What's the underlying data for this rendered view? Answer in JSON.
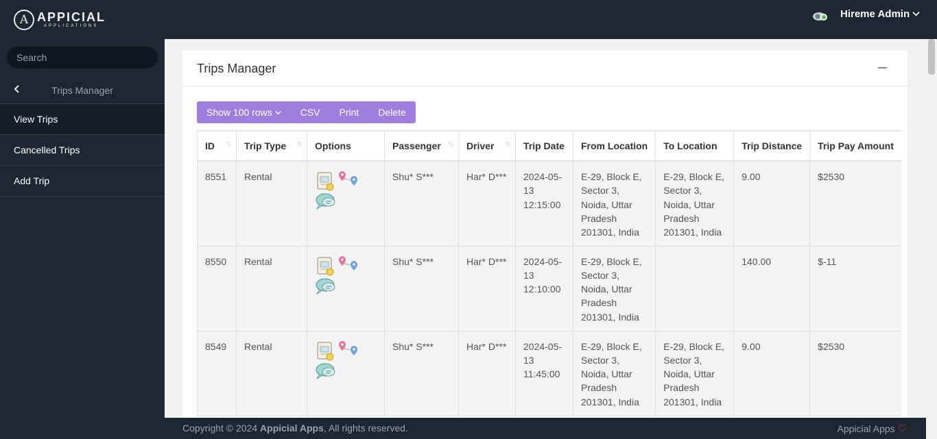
{
  "app": {
    "logo_letter": "A",
    "logo_main": "APPICIAL",
    "logo_sub": "APPLICATIONS",
    "user_name": "Hireme Admin"
  },
  "sidebar": {
    "search_placeholder": "Search",
    "back_title": "Trips Manager",
    "items": [
      {
        "label": "View Trips"
      },
      {
        "label": "Cancelled Trips"
      },
      {
        "label": "Add Trip"
      }
    ]
  },
  "main": {
    "title": "Trips Manager",
    "toolbar": {
      "rows": "Show 100 rows",
      "csv": "CSV",
      "print": "Print",
      "delete": "Delete"
    },
    "columns": [
      "ID",
      "Trip Type",
      "Options",
      "Passenger",
      "Driver",
      "Trip Date",
      "From Location",
      "To Location",
      "Trip Distance",
      "Trip Pay Amount"
    ],
    "rows": [
      {
        "id": "8551",
        "type": "Rental",
        "passenger": "Shu* S***",
        "driver": "Har* D***",
        "date": "2024-05-13 12:15:00",
        "from": "E-29, Block E, Sector 3, Noida, Uttar Pradesh 201301, India",
        "to": "E-29, Block E, Sector 3, Noida, Uttar Pradesh 201301, India",
        "distance": "9.00",
        "pay": "$2530"
      },
      {
        "id": "8550",
        "type": "Rental",
        "passenger": "Shu* S***",
        "driver": "Har* D***",
        "date": "2024-05-13 12:10:00",
        "from": "E-29, Block E, Sector 3, Noida, Uttar Pradesh 201301, India",
        "to": "",
        "distance": "140.00",
        "pay": "$-11"
      },
      {
        "id": "8549",
        "type": "Rental",
        "passenger": "Shu* S***",
        "driver": "Har* D***",
        "date": "2024-05-13 11:45:00",
        "from": "E-29, Block E, Sector 3, Noida, Uttar Pradesh 201301, India",
        "to": "E-29, Block E, Sector 3, Noida, Uttar Pradesh 201301, India",
        "distance": "9.00",
        "pay": "$2530"
      }
    ]
  },
  "footer": {
    "copyright_prefix": "Copyright © 2024",
    "copyright_brand": "Appicial Apps",
    "copyright_suffix": ", All rights reserved.",
    "brand": "Appicial Apps"
  },
  "colors": {
    "dark_bg": "#1d2732",
    "accent": "#a07ee0",
    "heart": "#e0556e"
  }
}
